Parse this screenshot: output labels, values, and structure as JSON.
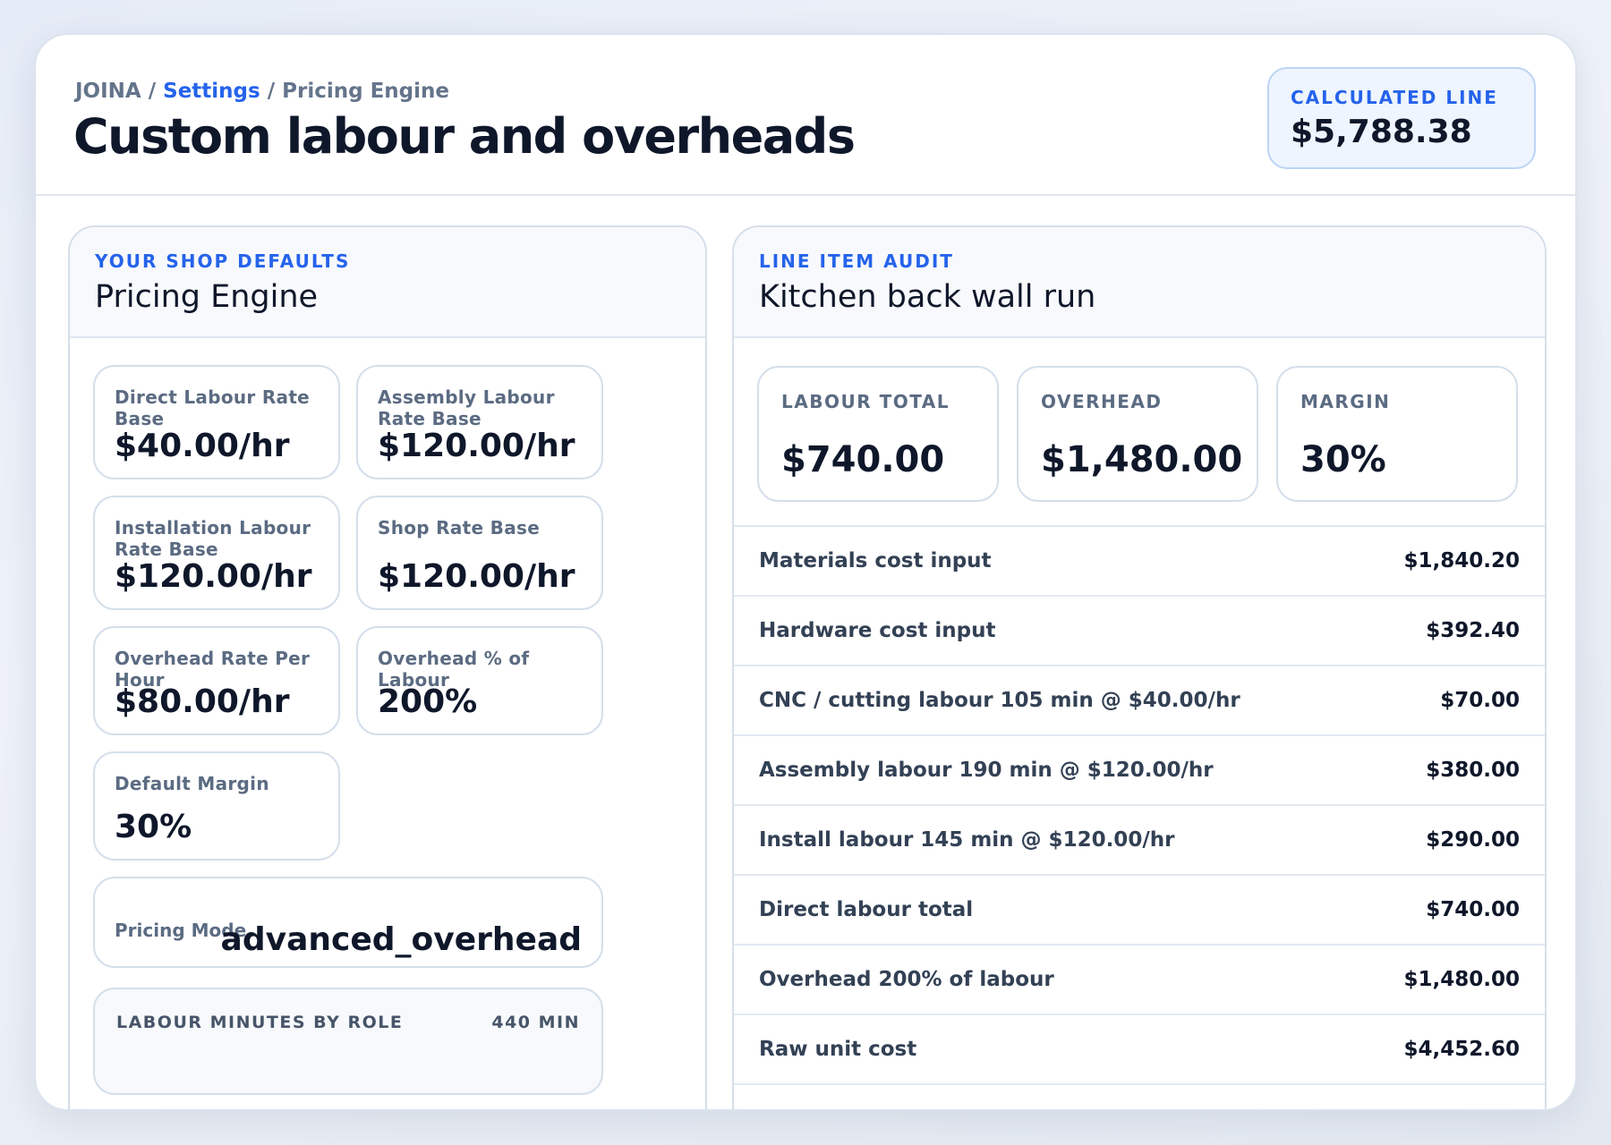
{
  "header": {
    "breadcrumb": {
      "root": "JOINA",
      "sep1": " / ",
      "link": "Settings",
      "sep2": " / ",
      "current": "Pricing Engine"
    },
    "title": "Custom labour and overheads",
    "calculated": {
      "label": "CALCULATED LINE",
      "value": "$5,788.38"
    }
  },
  "left_panel": {
    "eyebrow": "YOUR SHOP DEFAULTS",
    "title": "Pricing Engine",
    "rates": [
      {
        "label": "Direct Labour Rate Base",
        "value": "$40.00/hr"
      },
      {
        "label": "Assembly Labour Rate Base",
        "value": "$120.00/hr"
      },
      {
        "label": "Installation Labour Rate Base",
        "value": "$120.00/hr"
      },
      {
        "label": "Shop Rate Base",
        "value": "$120.00/hr"
      },
      {
        "label": "Overhead Rate Per Hour",
        "value": "$80.00/hr"
      },
      {
        "label": "Overhead % of Labour",
        "value": "200%"
      },
      {
        "label": "Default Margin",
        "value": "30%"
      }
    ],
    "pricing_mode": {
      "label": "Pricing Mode",
      "value": "advanced_overhead"
    },
    "labour_minutes": {
      "label": "LABOUR MINUTES BY ROLE",
      "total": "440 MIN"
    }
  },
  "right_panel": {
    "eyebrow": "LINE ITEM AUDIT",
    "title": "Kitchen back wall run",
    "stats": [
      {
        "label": "LABOUR TOTAL",
        "value": "$740.00"
      },
      {
        "label": "OVERHEAD",
        "value": "$1,480.00"
      },
      {
        "label": "MARGIN",
        "value": "30%"
      }
    ],
    "audit_rows": [
      {
        "label": "Materials cost input",
        "value": "$1,840.20"
      },
      {
        "label": "Hardware cost input",
        "value": "$392.40"
      },
      {
        "label": "CNC / cutting labour 105 min @ $40.00/hr",
        "value": "$70.00"
      },
      {
        "label": "Assembly labour 190 min @ $120.00/hr",
        "value": "$380.00"
      },
      {
        "label": "Install labour 145 min @ $120.00/hr",
        "value": "$290.00"
      },
      {
        "label": "Direct labour total",
        "value": "$740.00"
      },
      {
        "label": "Overhead 200% of labour",
        "value": "$1,480.00"
      },
      {
        "label": "Raw unit cost",
        "value": "$4,452.60"
      }
    ]
  }
}
